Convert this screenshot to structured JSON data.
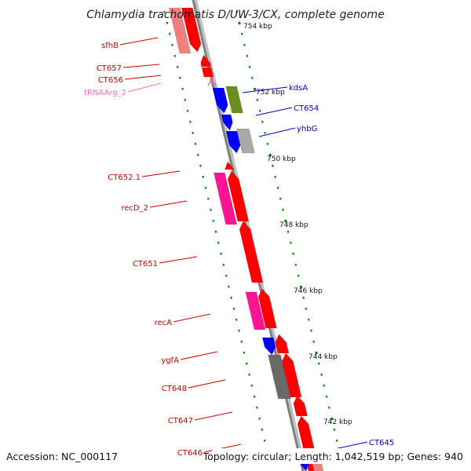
{
  "title": "Chlamydia trachomatis D/UW-3/CX, complete genome",
  "footer": {
    "accession": "Accession: NC_000117",
    "summary": "Topology: circular; Length: 1,042,519 bp; Genes: 940"
  },
  "scale_labels": [
    "754 kbp",
    "752 kbp",
    "750 kbp",
    "748 kbp",
    "746 kbp",
    "744 kbp",
    "742 kbp"
  ],
  "gene_labels": {
    "left": [
      "sfhB",
      "CT657",
      "CT656",
      "tRNAArg_2",
      "CT652.1",
      "recD_2",
      "CT651",
      "recA",
      "ygfA",
      "CT648",
      "CT647",
      "CT646"
    ],
    "right": [
      "kdsA",
      "CT654",
      "yhbG",
      "CT645"
    ]
  },
  "colors": {
    "backbone": "#808080",
    "forward_gene": "#ff0000",
    "forward_gene_light": "#f08080",
    "reverse_gene": "#0000ff",
    "rna_gene": "#ff69b4",
    "magenta_gene": "#ff1493",
    "green_gene": "#6b8e23",
    "gray_gene": "#a9a9a9",
    "dark_gray_gene": "#696969",
    "left_label": "#cc0000",
    "right_label": "#0000cc",
    "tick": "#008000"
  }
}
